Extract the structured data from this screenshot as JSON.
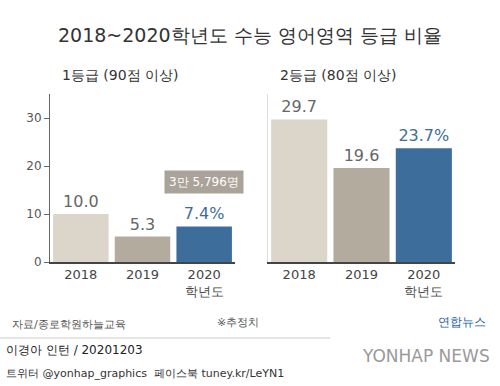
{
  "title": "2018~2020학년도 수능 영어영역 등급 비율",
  "chart_data": [
    {
      "type": "bar",
      "title": "1등급 (90점 이상)",
      "categories": [
        "2018",
        "2019",
        "2020\n학년도"
      ],
      "values": [
        10.0,
        5.3,
        7.4
      ],
      "value_labels": [
        "10.0",
        "5.3",
        "7.4%"
      ],
      "colors": [
        "#dcd5c9",
        "#b3ab9e",
        "#3d6e9b"
      ],
      "ylim": [
        0,
        35
      ],
      "yticks": [
        0,
        10,
        20,
        30
      ],
      "data_labels": true,
      "annotations": [
        {
          "text": "3만 5,796명",
          "category": "2020\n학년도"
        }
      ]
    },
    {
      "type": "bar",
      "title": "2등급 (80점 이상)",
      "categories": [
        "2018",
        "2019",
        "2020\n학년도"
      ],
      "values": [
        29.7,
        19.6,
        23.7
      ],
      "value_labels": [
        "29.7",
        "19.6",
        "23.7%"
      ],
      "colors": [
        "#dcd5c9",
        "#b3ab9e",
        "#3d6e9b"
      ],
      "ylim": [
        0,
        35
      ],
      "yticks": [],
      "data_labels": true,
      "tick_labels": false
    }
  ],
  "footer": {
    "source": "자료/종로학원하늘교육",
    "note": "※추정치",
    "credit": "이경아 인턴 / 20201203",
    "social": "트위터 @yonhap_graphics  페이스북 tuney.kr/LeYN1",
    "logo": "연합뉴스",
    "logo_en": "YONHAP NEWS"
  }
}
